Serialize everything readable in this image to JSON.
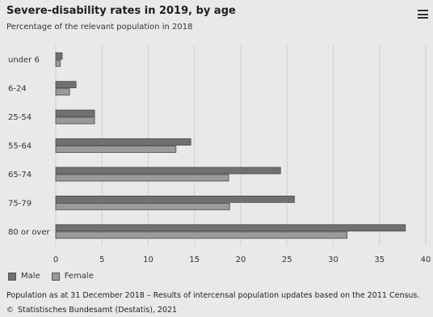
{
  "header": {
    "title": "Severe-disability rates in 2019, by age",
    "subtitle": "Percentage of the relevant population in 2018"
  },
  "icons": {
    "menu": "hamburger-menu-icon",
    "credit": "copyright-logo-icon"
  },
  "colors": {
    "male": "#707070",
    "female": "#9a9a9a",
    "grid": "#cfcfcf",
    "background": "#e9e9e9"
  },
  "chart_data": {
    "type": "bar",
    "orientation": "horizontal",
    "categories": [
      "under 6",
      "6-24",
      "25-54",
      "55-64",
      "65-74",
      "75-79",
      "80 or over"
    ],
    "series": [
      {
        "name": "Male",
        "values": [
          0.7,
          2.2,
          4.2,
          14.6,
          24.3,
          25.8,
          37.8
        ]
      },
      {
        "name": "Female",
        "values": [
          0.5,
          1.5,
          4.2,
          13.0,
          18.7,
          18.8,
          31.5
        ]
      }
    ],
    "xlim": [
      0,
      40
    ],
    "xticks": [
      0,
      5,
      10,
      15,
      20,
      25,
      30,
      35,
      40
    ],
    "grid": true,
    "legend": "bottom-left"
  },
  "footer": {
    "note": "Population as at 31 December 2018 – Results of intercensal population updates based on the 2011 Census.",
    "credit_symbol": "©",
    "credit": "Statistisches Bundesamt (Destatis), 2021"
  }
}
